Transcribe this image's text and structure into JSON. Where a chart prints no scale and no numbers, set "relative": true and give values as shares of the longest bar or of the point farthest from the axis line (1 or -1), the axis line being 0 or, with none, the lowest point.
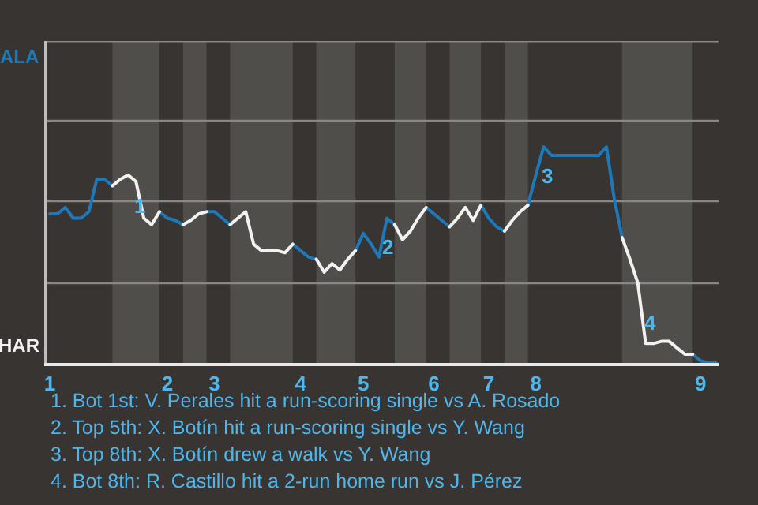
{
  "chart_data": {
    "type": "line",
    "relative": true,
    "categories": [
      "1",
      null,
      null,
      null,
      null,
      null,
      null,
      null,
      null,
      null,
      null,
      null,
      null,
      null,
      null,
      "2",
      null,
      null,
      null,
      null,
      null,
      "3",
      null,
      null,
      null,
      null,
      null,
      null,
      null,
      null,
      null,
      null,
      "4",
      null,
      null,
      null,
      null,
      null,
      null,
      null,
      "5",
      null,
      null,
      null,
      null,
      null,
      null,
      null,
      null,
      "6",
      null,
      null,
      null,
      null,
      null,
      null,
      "7",
      null,
      null,
      null,
      null,
      null,
      "8",
      null,
      null,
      null,
      null,
      null,
      null,
      null,
      null,
      null,
      null,
      null,
      null,
      null,
      null,
      null,
      null,
      null,
      null,
      null,
      null,
      "9",
      null,
      null
    ],
    "marker": "none",
    "line_style": "solid",
    "ref_lines": [
      {
        "axis": "y",
        "value": 0.37,
        "color": "#8a8784"
      },
      {
        "axis": "y",
        "value": 0.75,
        "color": "#8a8784"
      },
      {
        "axis": "y",
        "value": 1.12,
        "color": "#8a8784"
      },
      {
        "axis": "y",
        "value": 1.49,
        "color": "#8a8784"
      }
    ],
    "series": [
      {
        "color": "#1f78b8",
        "values": [
          0.69,
          0.69,
          0.72,
          0.67,
          0.67,
          0.7,
          0.85,
          0.85,
          0.82,
          null,
          null,
          null,
          null,
          null,
          0.7,
          0.67,
          0.66,
          0.64,
          null,
          null,
          0.7,
          0.7,
          0.67,
          0.64,
          null,
          null,
          null,
          null,
          null,
          null,
          null,
          0.55,
          0.52,
          0.49,
          0.48,
          null,
          null,
          null,
          null,
          0.52,
          0.6,
          0.55,
          0.49,
          0.67,
          0.64,
          null,
          null,
          null,
          0.72,
          0.69,
          0.66,
          0.63,
          null,
          null,
          null,
          0.73,
          0.67,
          0.63,
          0.61,
          null,
          null,
          0.73,
          0.87,
          1,
          0.96,
          0.96,
          0.96,
          0.96,
          0.96,
          0.96,
          0.96,
          1,
          0.76,
          0.58,
          null,
          null,
          null,
          null,
          null,
          null,
          null,
          null,
          0.04,
          0.01,
          0,
          0
        ]
      },
      {
        "color": "#f2f2f2",
        "values": [
          null,
          null,
          null,
          null,
          null,
          null,
          null,
          null,
          0.82,
          0.85,
          0.87,
          0.84,
          0.67,
          0.64,
          0.7,
          null,
          null,
          0.64,
          0.66,
          0.69,
          0.7,
          null,
          null,
          0.64,
          0.67,
          0.7,
          0.55,
          0.52,
          0.52,
          0.52,
          0.51,
          0.55,
          null,
          null,
          0.48,
          0.42,
          0.46,
          0.43,
          0.48,
          0.52,
          null,
          null,
          null,
          null,
          0.64,
          0.57,
          0.61,
          0.67,
          0.72,
          null,
          null,
          0.63,
          0.67,
          0.72,
          0.66,
          0.73,
          null,
          null,
          0.61,
          0.66,
          0.7,
          0.73,
          null,
          null,
          null,
          null,
          null,
          null,
          null,
          null,
          null,
          null,
          null,
          0.58,
          0.48,
          0.37,
          0.09,
          0.09,
          0.1,
          0.1,
          0.07,
          0.04,
          0.04,
          null,
          null,
          null
        ]
      }
    ],
    "annotations": [
      "ALA",
      "HAR",
      "1",
      "2",
      "3",
      "4",
      "1. Bot 1st: V. Perales hit a run-scoring single vs A. Rosado",
      "2. Top 5th: X. Botín hit a run-scoring single vs Y. Wang",
      "3. Top 8th: X. Botín drew a walk vs Y. Wang",
      "4. Bot 8th: R. Castillo hit a 2-run home run vs J. Pérez"
    ]
  }
}
